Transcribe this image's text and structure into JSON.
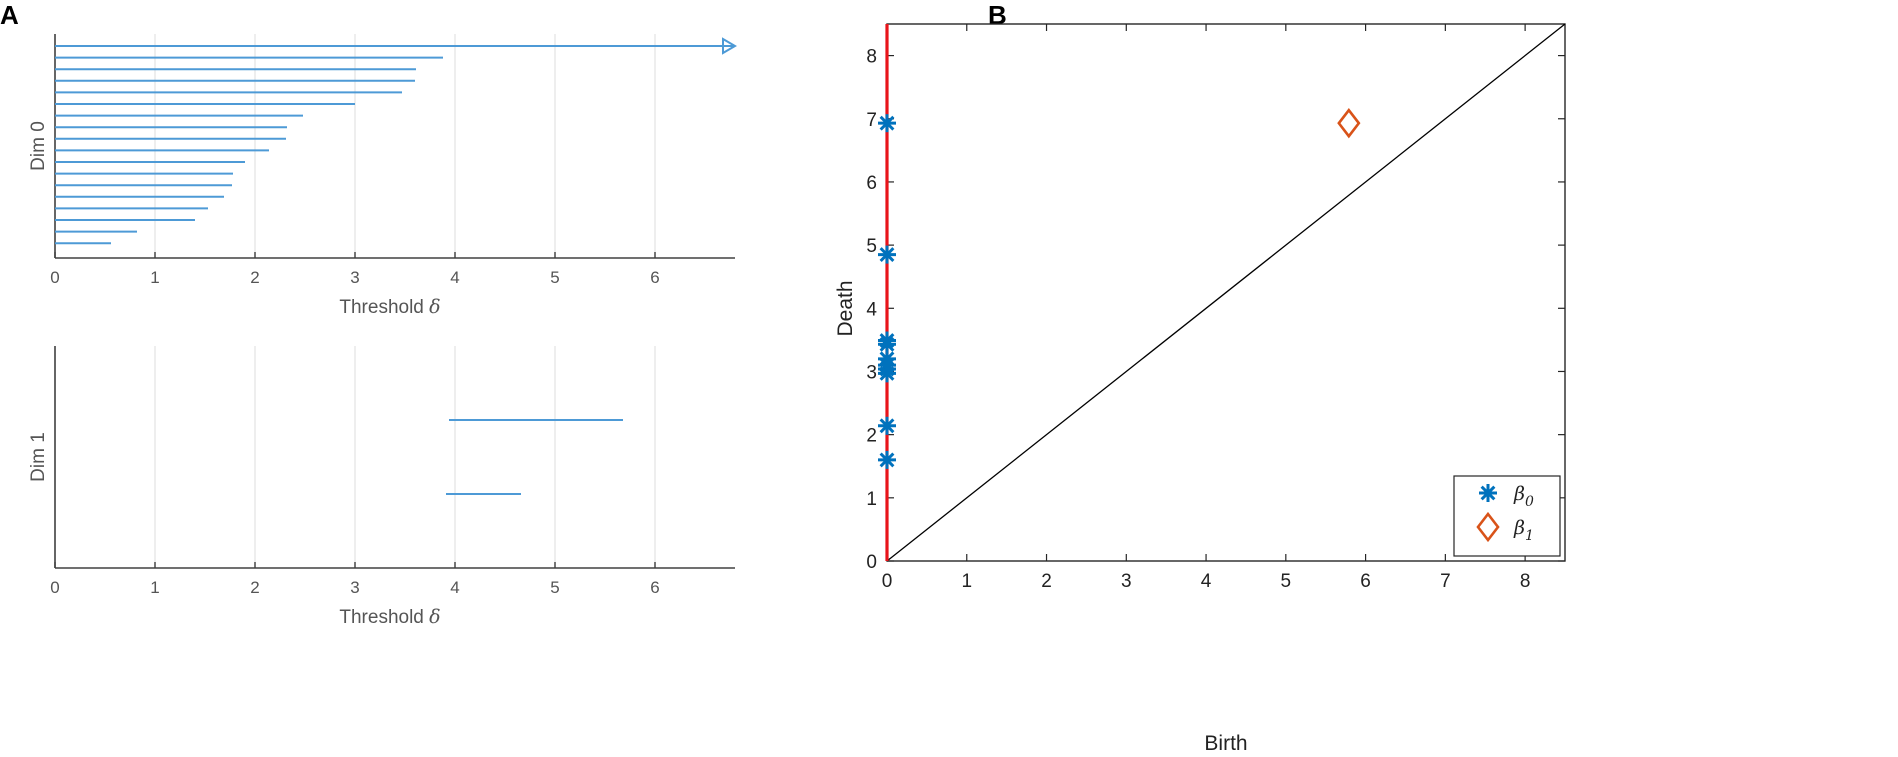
{
  "panels": {
    "a_letter": "A",
    "b_letter": "B"
  },
  "colors": {
    "barcode": "#4d9ad6",
    "beta0": "#0072bd",
    "beta1": "#d95319",
    "zero_death_line": "#e8141a",
    "diagonal": "#000000",
    "grid": "#e6e6e6"
  },
  "chart_data": [
    {
      "type": "barcode",
      "panel": "A",
      "ylabel": "Dim 0",
      "xlabel_text": "Threshold ",
      "xlabel_symbol": "δ",
      "xlim": [
        0,
        6.8
      ],
      "xticks": [
        "0",
        "1",
        "2",
        "3",
        "4",
        "5",
        "6"
      ],
      "grid": true,
      "bars": [
        {
          "birth": 0,
          "death": 6.8,
          "infinite": true
        },
        {
          "birth": 0,
          "death": 3.88
        },
        {
          "birth": 0,
          "death": 3.61
        },
        {
          "birth": 0,
          "death": 3.6
        },
        {
          "birth": 0,
          "death": 3.47
        },
        {
          "birth": 0,
          "death": 3.0
        },
        {
          "birth": 0,
          "death": 2.48
        },
        {
          "birth": 0,
          "death": 2.32
        },
        {
          "birth": 0,
          "death": 2.31
        },
        {
          "birth": 0,
          "death": 2.14
        },
        {
          "birth": 0,
          "death": 1.9
        },
        {
          "birth": 0,
          "death": 1.78
        },
        {
          "birth": 0,
          "death": 1.77
        },
        {
          "birth": 0,
          "death": 1.69
        },
        {
          "birth": 0,
          "death": 1.53
        },
        {
          "birth": 0,
          "death": 1.4
        },
        {
          "birth": 0,
          "death": 0.82
        },
        {
          "birth": 0,
          "death": 0.56
        }
      ]
    },
    {
      "type": "barcode",
      "panel": "A",
      "ylabel": "Dim 1",
      "xlabel_text": "Threshold ",
      "xlabel_symbol": "δ",
      "xlim": [
        0,
        6.8
      ],
      "xticks": [
        "0",
        "1",
        "2",
        "3",
        "4",
        "5",
        "6"
      ],
      "grid": true,
      "bars": [
        {
          "birth": 3.94,
          "death": 5.68
        },
        {
          "birth": 3.91,
          "death": 4.66
        }
      ]
    },
    {
      "type": "scatter",
      "panel": "B",
      "xlabel": "Birth",
      "ylabel": "Death",
      "xlim": [
        0,
        8.5
      ],
      "ylim": [
        0,
        8.5
      ],
      "xticks": [
        "0",
        "1",
        "2",
        "3",
        "4",
        "5",
        "6",
        "7",
        "8"
      ],
      "yticks": [
        "0",
        "1",
        "2",
        "3",
        "4",
        "5",
        "6",
        "7",
        "8"
      ],
      "legend_position": "bottom-right",
      "series": [
        {
          "name_symbol": "β",
          "name_subscript": "0",
          "marker": "asterisk",
          "points": [
            [
              0,
              6.93
            ],
            [
              0,
              4.85
            ],
            [
              0,
              3.49
            ],
            [
              0,
              3.43
            ],
            [
              0,
              3.2
            ],
            [
              0,
              3.1
            ],
            [
              0,
              3.04
            ],
            [
              0,
              2.97
            ],
            [
              0,
              2.14
            ],
            [
              0,
              1.6
            ]
          ]
        },
        {
          "name_symbol": "β",
          "name_subscript": "1",
          "marker": "diamond",
          "points": [
            [
              5.79,
              6.93
            ]
          ]
        }
      ],
      "reference_lines": [
        {
          "kind": "diagonal",
          "from": [
            0,
            0
          ],
          "to": [
            8.5,
            8.5
          ]
        },
        {
          "kind": "vertical",
          "x": 0,
          "from_y": 0,
          "to_y": 8.5
        }
      ]
    }
  ]
}
